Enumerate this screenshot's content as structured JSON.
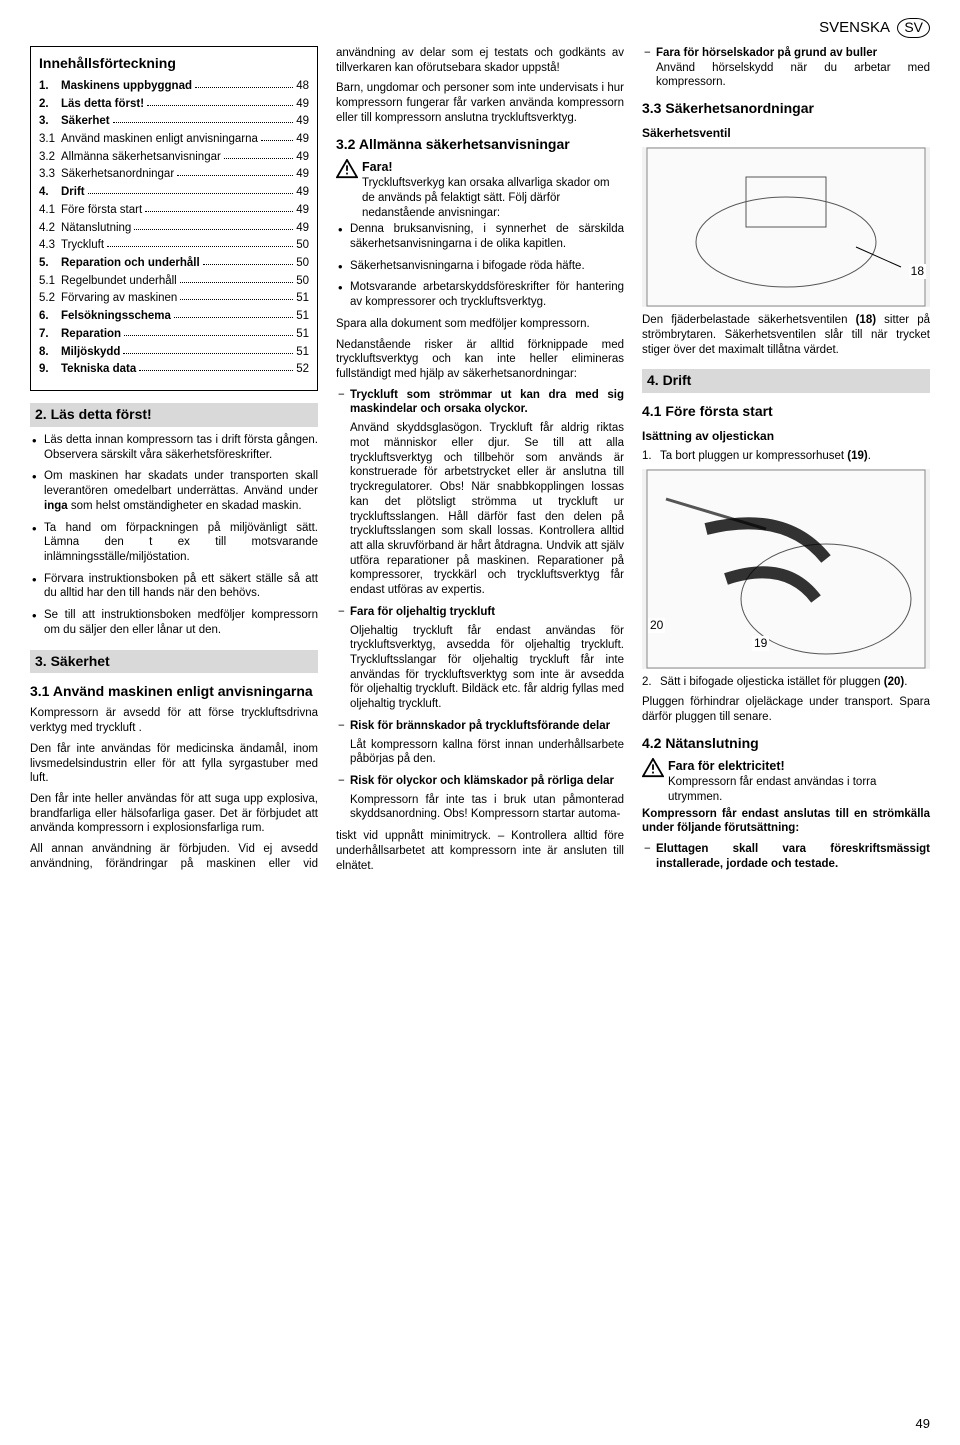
{
  "header": {
    "lang": "SVENSKA",
    "badge": "SV",
    "pageNumber": "49"
  },
  "toc": {
    "title": "Innehållsförteckning",
    "rows": [
      {
        "n": "1.",
        "t": "Maskinens uppbyggnad",
        "p": "48",
        "bold": true
      },
      {
        "n": "2.",
        "t": "Läs detta först!",
        "p": "49",
        "bold": true
      },
      {
        "n": "3.",
        "t": "Säkerhet",
        "p": "49",
        "bold": true
      },
      {
        "n": "3.1",
        "t": "Använd maskinen enligt anvisningarna",
        "p": "49",
        "bold": false
      },
      {
        "n": "3.2",
        "t": "Allmänna säkerhetsanvisningar",
        "p": "49",
        "bold": false
      },
      {
        "n": "3.3",
        "t": "Säkerhetsanordningar",
        "p": "49",
        "bold": false
      },
      {
        "n": "4.",
        "t": "Drift",
        "p": "49",
        "bold": true
      },
      {
        "n": "4.1",
        "t": "Före första start",
        "p": "49",
        "bold": false
      },
      {
        "n": "4.2",
        "t": "Nätanslutning",
        "p": "49",
        "bold": false
      },
      {
        "n": "4.3",
        "t": "Tryckluft",
        "p": "50",
        "bold": false
      },
      {
        "n": "5.",
        "t": "Reparation och underhåll",
        "p": "50",
        "bold": true
      },
      {
        "n": "5.1",
        "t": "Regelbundet underhåll",
        "p": "50",
        "bold": false
      },
      {
        "n": "5.2",
        "t": "Förvaring av maskinen",
        "p": "51",
        "bold": false
      },
      {
        "n": "6.",
        "t": "Felsökningsschema",
        "p": "51",
        "bold": true
      },
      {
        "n": "7.",
        "t": "Reparation",
        "p": "51",
        "bold": true
      },
      {
        "n": "8.",
        "t": "Miljöskydd",
        "p": "51",
        "bold": true
      },
      {
        "n": "9.",
        "t": "Tekniska data",
        "p": "52",
        "bold": true
      }
    ]
  },
  "s2": {
    "head": "2.   Läs detta först!",
    "items": [
      "Läs detta innan kompressorn tas i drift första gången. Observera sär­skilt våra säkerhetsföreskrifter.",
      "Om maskinen har skadats under transporten skall leverantören ome­delbart underrättas. Använd under <b>inga</b> som helst omständigheter en skadad maskin.",
      "Ta hand om förpackningen på miljö­vänligt sätt. Lämna den t ex till mot­svarande inlämningsställe/miljösta­tion.",
      "Förvara instruktionsboken på ett säkert ställe så att du alltid har den till hands när den behövs.",
      "Se till att instruktionsboken medföl­jer kompressorn om du säljer den eller lånar ut den."
    ]
  },
  "s3": {
    "head": "3.   Säkerhet",
    "s31": {
      "head": "3.1  Använd maskinen enligt anvisningarna",
      "p1": "Kompressorn är avsedd för att förse tryckluftsdrivna verktyg med tryckluft .",
      "p2": "Den får inte användas för medicinska ändamål, inom livsmedelsindustrin eller för att fylla syrgastuber med luft.",
      "p3": "Den får inte heller användas för att suga upp explosiva, brandfarliga eller hälso­farliga gaser. Det är förbjudet att använda kompressorn i explosionsfar­liga rum.",
      "p4": "All annan användning är förbjuden. Vid ej avsedd användning, förändringar på maskinen eller vid användning av delar som ej testats och godkänts av tillverka­ren kan oförutsebara skador uppstå!",
      "p5": "Barn, ungdomar och personer som inte undervisats i hur kompressorn fungerar får varken använda kompressorn eller till kompressorn anslutna tryckluftsverktyg."
    },
    "s32": {
      "head": "3.2  Allmänna säkerhetsan­visningar",
      "warnLabel": "Fara!",
      "warnText": "Tryckluftsverkyg kan orsaka all­varliga skador om de används på felak­tigt sätt. Följ därför nedanstående anvis­ningar:",
      "bullets": [
        "Denna bruksanvisning, i synnerhet de särskilda säkerhetsanvisning­arna i de olika kapitlen.",
        "Säkerhetsanvisningarna i bifogade röda häfte.",
        "Motsvarande arbetarskyddsföre­skrifter för hantering av kompresso­rer och tryckluftsverktyg."
      ],
      "afterB": "Spara alla dokument som medföljer kompressorn.",
      "afterB2": "Nedanstående risker är alltid förknip­pade med tryckluftsverktyg och kan inte heller elimineras fullständigt med hjälp av säkerhetsanordningar:",
      "dash": [
        {
          "lead": "<b>Tryckluft som strömmar ut kan dra med sig maskindelar och orsaka olyckor.</b>",
          "body": "Använd skyddsglasögon. Tryckluft får aldrig riktas mot män­niskor eller djur. Se till att alla tryckluftsverktyg och tillbehör som används är konstrue­rade för arbetstrycket eller är anslutna till tryckregulatorer. Obs! När snabbkopplingen lossas kan det plötsligt strömma ut tryckluft ur tryckluftsslangen. Håll därför fast den delen på tryckluftsslangen som skall lossas. Kontrollera alltid att alla skruvför­band är hårt åtdragna. Undvik att själv utföra reparationer på maskinen. Reparationer på kom­pressorer, tryckkärl och trycklufts­verktyg får endast utföras av exper­tis."
        },
        {
          "lead": "<b>Fara för oljehaltig tryckluft</b>",
          "body": "Oljehaltig tryckluft får endast använ­das för tryckluftsverktyg, avsedda för oljehaltig tryckluft. Trycklufts­slangar för oljehaltig tryckluft får inte användas för tryckluftsverktyg som inte är avsedda för oljehaltig tryck­luft. Bildäck etc. får aldrig fyllas med oljehaltig tryckluft."
        },
        {
          "lead": "<b>Risk för brännskador på tryck­luftsförande delar</b>",
          "body": "Låt kompressorn kallna först innan underhållsarbete påbörjas på den."
        },
        {
          "lead": "<b>Risk för olyckor och klämskador på rörliga delar</b>",
          "body": "Kompressorn får inte tas i bruk utan påmonterad skyddsanordning. Obs! Kompressorn startar automa-"
        }
      ],
      "cont": "tiskt vid uppnått minimitryck. – Kon­trollera alltid före underhållsarbetet att kompressorn inte är ansluten till elnätet.",
      "lastDash": {
        "lead": "<b>Fara för hörselskador på grund av buller</b>",
        "body": "Använd hörselskydd när du arbetar med kompressorn."
      }
    },
    "s33": {
      "head": "3.3  Säkerhetsanordningar",
      "valveTitle": "Säkerhetsventil",
      "callout18": "18",
      "caption": "Den fjäderbelastade säkerhetsventilen <b>(18)</b> sitter på strömbrytaren. Säkerhets­ventilen slår till när trycket stiger över det maximalt tillåtna värdet."
    }
  },
  "s4": {
    "head": "4.   Drift",
    "s41": {
      "head": "4.1  Före första start",
      "sub": "Isättning av oljestickan",
      "li1": "Ta bort pluggen ur kompressorhu­set <b>(19)</b>.",
      "callout19": "19",
      "callout20": "20",
      "li2": "Sätt i bifogade oljesticka istället för pluggen <b>(20)</b>.",
      "after": "Pluggen förhindrar oljeläckage under transport. Spara därför pluggen till senare."
    },
    "s42": {
      "head": "4.2  Nätanslutning",
      "warnLabel": "Fara för elektricitet!",
      "warnText": "Kompressorn får endast användas i torra utrymmen.",
      "bold": "Kompressorn får endast anslutas till en strömkälla under följande förutsättning:",
      "dash": [
        "<b>Eluttagen skall vara föreskrifts­mässigt installerade, jordade och testade.</b>"
      ]
    }
  }
}
